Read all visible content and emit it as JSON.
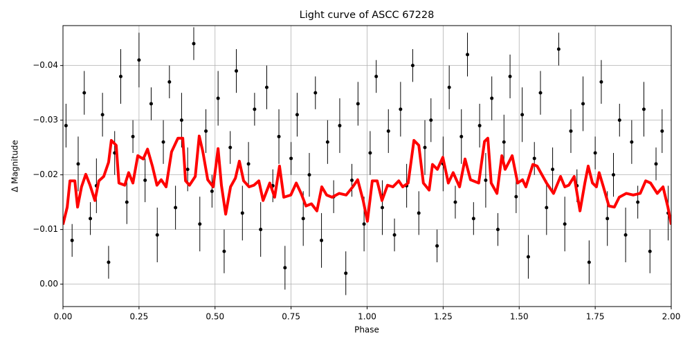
{
  "chart_data": {
    "type": "scatter",
    "title": "Light curve of ASCC 67228",
    "xlabel": "Phase",
    "ylabel": "Δ Magnitude",
    "xlim": [
      0,
      2
    ],
    "ylim": [
      0.0041,
      -0.0473
    ],
    "xticks": [
      {
        "value": 0,
        "label": "0.00"
      },
      {
        "value": 0.25,
        "label": "0.25"
      },
      {
        "value": 0.5,
        "label": "0.50"
      },
      {
        "value": 0.75,
        "label": "0.75"
      },
      {
        "value": 1,
        "label": "1.00"
      },
      {
        "value": 1.25,
        "label": "1.25"
      },
      {
        "value": 1.5,
        "label": "1.50"
      },
      {
        "value": 1.75,
        "label": "1.75"
      },
      {
        "value": 2,
        "label": "2.00"
      }
    ],
    "yticks": [
      {
        "value": 0,
        "label": "0.00"
      },
      {
        "value": -0.01,
        "label": "−0.01"
      },
      {
        "value": -0.02,
        "label": "−0.02"
      },
      {
        "value": -0.03,
        "label": "−0.03"
      },
      {
        "value": -0.04,
        "label": "−0.04"
      }
    ],
    "grid": true,
    "series": [
      {
        "kind": "errorbar",
        "color": "#000000",
        "x": [
          0.01,
          0.03,
          0.05,
          0.07,
          0.09,
          0.11,
          0.13,
          0.15,
          0.17,
          0.19,
          0.21,
          0.23,
          0.25,
          0.27,
          0.29,
          0.31,
          0.33,
          0.35,
          0.37,
          0.39,
          0.41,
          0.43,
          0.45,
          0.47,
          0.49,
          0.51,
          0.53,
          0.55,
          0.57,
          0.59,
          0.61,
          0.63,
          0.65,
          0.67,
          0.69,
          0.71,
          0.73,
          0.75,
          0.77,
          0.79,
          0.81,
          0.83,
          0.85,
          0.87,
          0.89,
          0.91,
          0.93,
          0.95,
          0.97,
          0.99,
          1.01,
          1.03,
          1.05,
          1.07,
          1.09,
          1.11,
          1.13,
          1.15,
          1.17,
          1.19,
          1.21,
          1.23,
          1.25,
          1.27,
          1.29,
          1.31,
          1.33,
          1.35,
          1.37,
          1.39,
          1.41,
          1.43,
          1.45,
          1.47,
          1.49,
          1.51,
          1.53,
          1.55,
          1.57,
          1.59,
          1.61,
          1.63,
          1.65,
          1.67,
          1.69,
          1.71,
          1.73,
          1.75,
          1.77,
          1.79,
          1.81,
          1.83,
          1.85,
          1.87,
          1.89,
          1.91,
          1.93,
          1.95,
          1.97,
          1.99
        ],
        "values": [
          -0.029,
          -0.008,
          -0.022,
          -0.035,
          -0.012,
          -0.018,
          -0.031,
          -0.004,
          -0.024,
          -0.038,
          -0.015,
          -0.027,
          -0.041,
          -0.019,
          -0.033,
          -0.009,
          -0.026,
          -0.037,
          -0.014,
          -0.03,
          -0.021,
          -0.044,
          -0.011,
          -0.028,
          -0.017,
          -0.034,
          -0.006,
          -0.025,
          -0.039,
          -0.013,
          -0.022,
          -0.032,
          -0.01,
          -0.036,
          -0.018,
          -0.027,
          -0.003,
          -0.023,
          -0.031,
          -0.012,
          -0.02,
          -0.035,
          -0.008,
          -0.026,
          -0.016,
          -0.029,
          -0.002,
          -0.019,
          -0.033,
          -0.011,
          -0.024,
          -0.038,
          -0.014,
          -0.028,
          -0.009,
          -0.032,
          -0.018,
          -0.04,
          -0.013,
          -0.025,
          -0.03,
          -0.007,
          -0.022,
          -0.036,
          -0.015,
          -0.027,
          -0.042,
          -0.012,
          -0.029,
          -0.019,
          -0.034,
          -0.01,
          -0.026,
          -0.038,
          -0.016,
          -0.031,
          -0.005,
          -0.023,
          -0.035,
          -0.014,
          -0.021,
          -0.043,
          -0.011,
          -0.028,
          -0.018,
          -0.033,
          -0.004,
          -0.024,
          -0.037,
          -0.012,
          -0.02,
          -0.03,
          -0.009,
          -0.026,
          -0.015,
          -0.032,
          -0.006,
          -0.022,
          -0.028,
          -0.013
        ],
        "errors": [
          0.004,
          0.003,
          0.005,
          0.004,
          0.003,
          0.005,
          0.004,
          0.003,
          0.004,
          0.005,
          0.004,
          0.003,
          0.005,
          0.004,
          0.003,
          0.005,
          0.004,
          0.003,
          0.004,
          0.005,
          0.004,
          0.003,
          0.005,
          0.004,
          0.003,
          0.005,
          0.004,
          0.003,
          0.004,
          0.005,
          0.004,
          0.003,
          0.005,
          0.004,
          0.003,
          0.005,
          0.004,
          0.003,
          0.004,
          0.005,
          0.004,
          0.003,
          0.005,
          0.004,
          0.003,
          0.005,
          0.004,
          0.003,
          0.004,
          0.005,
          0.004,
          0.003,
          0.005,
          0.004,
          0.003,
          0.005,
          0.004,
          0.003,
          0.004,
          0.005,
          0.004,
          0.003,
          0.005,
          0.004,
          0.003,
          0.005,
          0.004,
          0.003,
          0.004,
          0.005,
          0.004,
          0.003,
          0.005,
          0.004,
          0.003,
          0.005,
          0.004,
          0.003,
          0.004,
          0.005,
          0.004,
          0.003,
          0.005,
          0.004,
          0.003,
          0.005,
          0.004,
          0.003,
          0.004,
          0.005,
          0.004,
          0.003,
          0.005,
          0.004,
          0.003,
          0.005,
          0.004,
          0.003,
          0.004,
          0.005
        ]
      },
      {
        "kind": "line",
        "color": "#ff0000",
        "x": [
          0,
          0.014,
          0.023,
          0.039,
          0.048,
          0.061,
          0.075,
          0.089,
          0.105,
          0.118,
          0.134,
          0.15,
          0.159,
          0.175,
          0.184,
          0.203,
          0.216,
          0.23,
          0.246,
          0.264,
          0.278,
          0.294,
          0.309,
          0.323,
          0.339,
          0.357,
          0.378,
          0.394,
          0.403,
          0.416,
          0.435,
          0.448,
          0.46,
          0.476,
          0.494,
          0.51,
          0.521,
          0.535,
          0.551,
          0.567,
          0.58,
          0.594,
          0.612,
          0.628,
          0.644,
          0.658,
          0.68,
          0.696,
          0.712,
          0.726,
          0.749,
          0.767,
          0.783,
          0.799,
          0.817,
          0.835,
          0.851,
          0.867,
          0.885,
          0.908,
          0.931,
          0.953,
          0.969,
          0.987,
          1.001,
          1.017,
          1.033,
          1.049,
          1.067,
          1.085,
          1.104,
          1.117,
          1.135,
          1.154,
          1.17,
          1.185,
          1.204,
          1.215,
          1.231,
          1.249,
          1.267,
          1.283,
          1.304,
          1.322,
          1.34,
          1.367,
          1.386,
          1.397,
          1.408,
          1.427,
          1.443,
          1.454,
          1.477,
          1.495,
          1.511,
          1.522,
          1.545,
          1.559,
          1.59,
          1.613,
          1.636,
          1.65,
          1.663,
          1.681,
          1.7,
          1.716,
          1.727,
          1.741,
          1.754,
          1.763,
          1.777,
          1.795,
          1.813,
          1.829,
          1.852,
          1.875,
          1.898,
          1.916,
          1.932,
          1.954,
          1.973,
          1.989,
          2
        ],
        "values": [
          -0.0109,
          -0.0141,
          -0.0189,
          -0.0189,
          -0.0141,
          -0.0178,
          -0.0201,
          -0.0181,
          -0.0153,
          -0.0189,
          -0.0197,
          -0.0223,
          -0.0263,
          -0.0254,
          -0.0185,
          -0.0181,
          -0.0204,
          -0.0185,
          -0.0235,
          -0.0229,
          -0.0247,
          -0.0216,
          -0.0181,
          -0.0191,
          -0.0178,
          -0.0242,
          -0.0267,
          -0.0267,
          -0.0189,
          -0.0181,
          -0.0197,
          -0.0271,
          -0.0242,
          -0.0191,
          -0.0178,
          -0.0248,
          -0.0181,
          -0.0128,
          -0.0178,
          -0.0194,
          -0.0225,
          -0.0189,
          -0.0178,
          -0.0181,
          -0.0189,
          -0.0153,
          -0.0185,
          -0.0159,
          -0.0216,
          -0.0159,
          -0.0163,
          -0.0185,
          -0.0166,
          -0.0143,
          -0.0147,
          -0.0134,
          -0.0178,
          -0.0163,
          -0.0159,
          -0.0166,
          -0.0163,
          -0.0178,
          -0.0191,
          -0.0153,
          -0.0115,
          -0.0189,
          -0.0189,
          -0.0153,
          -0.0181,
          -0.0178,
          -0.0189,
          -0.0178,
          -0.0185,
          -0.0263,
          -0.0254,
          -0.0185,
          -0.0172,
          -0.0219,
          -0.021,
          -0.0232,
          -0.0185,
          -0.0204,
          -0.0178,
          -0.0229,
          -0.0191,
          -0.0185,
          -0.0261,
          -0.0267,
          -0.0185,
          -0.0166,
          -0.0235,
          -0.021,
          -0.0235,
          -0.0185,
          -0.0191,
          -0.0178,
          -0.0219,
          -0.0216,
          -0.0185,
          -0.0166,
          -0.0197,
          -0.0178,
          -0.0181,
          -0.0197,
          -0.0134,
          -0.0185,
          -0.0216,
          -0.0185,
          -0.0178,
          -0.0204,
          -0.0178,
          -0.0143,
          -0.0141,
          -0.0159,
          -0.0166,
          -0.0163,
          -0.0166,
          -0.0189,
          -0.0185,
          -0.0166,
          -0.0178,
          -0.0141,
          -0.0109
        ]
      }
    ]
  }
}
